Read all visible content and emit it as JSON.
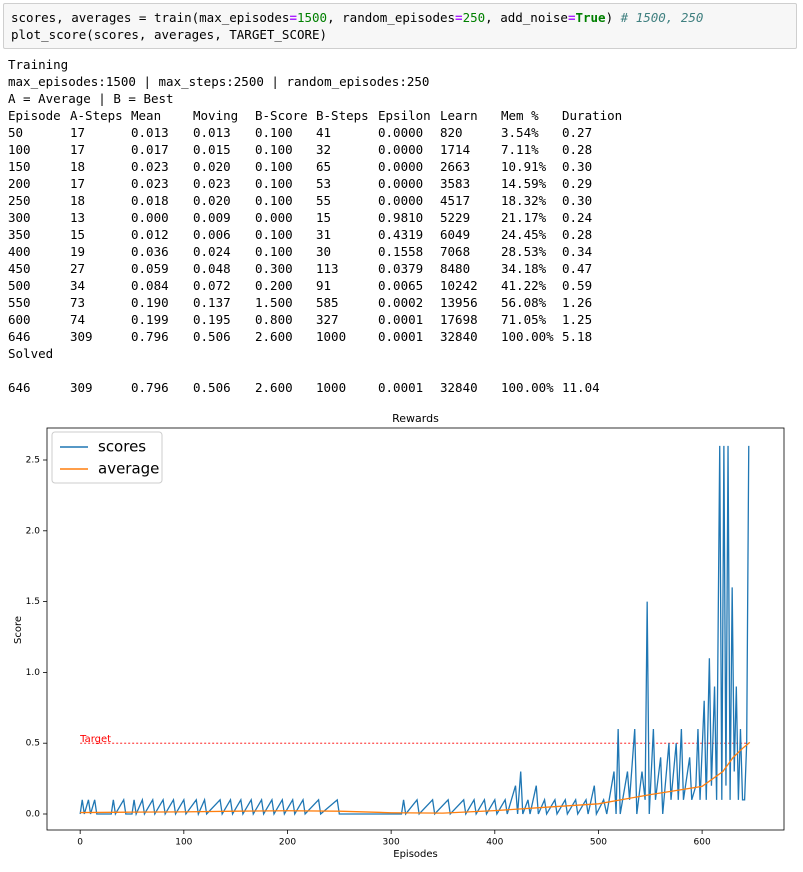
{
  "code": {
    "lines": [
      [
        {
          "text": "scores, averages = train(max_episodes",
          "kind": "plain"
        },
        {
          "text": "=",
          "kind": "op"
        },
        {
          "text": "1500",
          "kind": "num"
        },
        {
          "text": ", random_episodes",
          "kind": "plain"
        },
        {
          "text": "=",
          "kind": "op"
        },
        {
          "text": "250",
          "kind": "num"
        },
        {
          "text": ", add_noise",
          "kind": "plain"
        },
        {
          "text": "=",
          "kind": "op"
        },
        {
          "text": "True",
          "kind": "kw"
        },
        {
          "text": ") ",
          "kind": "plain"
        },
        {
          "text": "# 1500, 250",
          "kind": "comment"
        }
      ],
      [
        {
          "text": "plot_score(scores, averages, TARGET_SCORE)",
          "kind": "plain"
        }
      ]
    ]
  },
  "output": {
    "lines": [
      "Training",
      "max_episodes:1500 | max_steps:2500 | random_episodes:250",
      "A = Average | B = Best"
    ],
    "table": {
      "header": [
        "Episode",
        "A-Steps",
        "Mean",
        "Moving",
        "B-Score",
        "B-Steps",
        "Epsilon",
        "Learn",
        "Mem %",
        "Duration"
      ],
      "rows": [
        [
          "50",
          "17",
          "0.013",
          "0.013",
          "0.100",
          "41",
          "0.0000",
          "820",
          "3.54%",
          "0.27"
        ],
        [
          "100",
          "17",
          "0.017",
          "0.015",
          "0.100",
          "32",
          "0.0000",
          "1714",
          "7.11%",
          "0.28"
        ],
        [
          "150",
          "18",
          "0.023",
          "0.020",
          "0.100",
          "65",
          "0.0000",
          "2663",
          "10.91%",
          "0.30"
        ],
        [
          "200",
          "17",
          "0.023",
          "0.023",
          "0.100",
          "53",
          "0.0000",
          "3583",
          "14.59%",
          "0.29"
        ],
        [
          "250",
          "18",
          "0.018",
          "0.020",
          "0.100",
          "55",
          "0.0000",
          "4517",
          "18.32%",
          "0.30"
        ],
        [
          "300",
          "13",
          "0.000",
          "0.009",
          "0.000",
          "15",
          "0.9810",
          "5229",
          "21.17%",
          "0.24"
        ],
        [
          "350",
          "15",
          "0.012",
          "0.006",
          "0.100",
          "31",
          "0.4319",
          "6049",
          "24.45%",
          "0.28"
        ],
        [
          "400",
          "19",
          "0.036",
          "0.024",
          "0.100",
          "30",
          "0.1558",
          "7068",
          "28.53%",
          "0.34"
        ],
        [
          "450",
          "27",
          "0.059",
          "0.048",
          "0.300",
          "113",
          "0.0379",
          "8480",
          "34.18%",
          "0.47"
        ],
        [
          "500",
          "34",
          "0.084",
          "0.072",
          "0.200",
          "91",
          "0.0065",
          "10242",
          "41.22%",
          "0.59"
        ],
        [
          "550",
          "73",
          "0.190",
          "0.137",
          "1.500",
          "585",
          "0.0002",
          "13956",
          "56.08%",
          "1.26"
        ],
        [
          "600",
          "74",
          "0.199",
          "0.195",
          "0.800",
          "327",
          "0.0001",
          "17698",
          "71.05%",
          "1.25"
        ],
        [
          "646",
          "309",
          "0.796",
          "0.506",
          "2.600",
          "1000",
          "0.0001",
          "32840",
          "100.00%",
          "5.18"
        ]
      ]
    },
    "solved": "Solved",
    "final_row": [
      "646",
      "309",
      "0.796",
      "0.506",
      "2.600",
      "1000",
      "0.0001",
      "32840",
      "100.00%",
      "11.04"
    ]
  },
  "chart_data": {
    "type": "line",
    "title": "Rewards",
    "x_label": "Episodes",
    "y_label": "Score",
    "xlim": [
      -32,
      679
    ],
    "ylim": [
      -0.113,
      2.726
    ],
    "xticks": [
      0,
      100,
      200,
      300,
      400,
      500,
      600
    ],
    "yticks": [
      {
        "value": 0,
        "label": "0.0"
      },
      {
        "value": 0.5,
        "label": "0.5"
      },
      {
        "value": 1,
        "label": "1.0"
      },
      {
        "value": 1.5,
        "label": "1.5"
      },
      {
        "value": 2,
        "label": "2.0"
      },
      {
        "value": 2.5,
        "label": "2.5"
      }
    ],
    "legend": "upper left",
    "target": {
      "value": 0.5,
      "label": "Target",
      "color": "#ff0000"
    },
    "series": [
      {
        "name": "scores",
        "color": "#1f77b4",
        "x": [
          0,
          2,
          4,
          8,
          10,
          14,
          16,
          30,
          32,
          34,
          42,
          44,
          50,
          52,
          54,
          60,
          62,
          70,
          72,
          80,
          82,
          90,
          92,
          100,
          102,
          112,
          114,
          120,
          122,
          135,
          137,
          145,
          147,
          155,
          157,
          165,
          167,
          175,
          177,
          185,
          187,
          195,
          197,
          205,
          207,
          215,
          217,
          230,
          232,
          248,
          250,
          310,
          312,
          314,
          325,
          327,
          340,
          342,
          355,
          357,
          370,
          372,
          380,
          382,
          390,
          392,
          400,
          402,
          410,
          412,
          420,
          422,
          425,
          427,
          432,
          434,
          440,
          442,
          448,
          450,
          458,
          460,
          468,
          470,
          478,
          480,
          488,
          490,
          496,
          498,
          505,
          508,
          515,
          517,
          519,
          521,
          528,
          530,
          535,
          537,
          542,
          545,
          547,
          549,
          553,
          555,
          560,
          562,
          568,
          570,
          575,
          577,
          580,
          582,
          586,
          588,
          590,
          594,
          596,
          598,
          602,
          604,
          607,
          609,
          612,
          614,
          617,
          619,
          621,
          623,
          625,
          627,
          629,
          631,
          633,
          635,
          637,
          639,
          641,
          643,
          645
        ],
        "values": [
          0,
          0.1,
          0,
          0.1,
          0,
          0.1,
          0,
          0,
          0.1,
          0,
          0.1,
          0,
          0,
          0.1,
          0,
          0.1,
          0,
          0.1,
          0,
          0.1,
          0,
          0.1,
          0,
          0.1,
          0,
          0.1,
          0,
          0.1,
          0,
          0.1,
          0,
          0.1,
          0,
          0.1,
          0,
          0.1,
          0,
          0.1,
          0,
          0.1,
          0,
          0.1,
          0,
          0.1,
          0,
          0.1,
          0,
          0.1,
          0,
          0.1,
          0,
          0,
          0.1,
          0,
          0.1,
          0,
          0.1,
          0,
          0.1,
          0,
          0.1,
          0,
          0.1,
          0,
          0.1,
          0,
          0.1,
          0,
          0.1,
          0,
          0.2,
          0,
          0.3,
          0,
          0.1,
          0,
          0.2,
          0,
          0.1,
          0,
          0.1,
          0,
          0.1,
          0,
          0.1,
          0,
          0.1,
          0,
          0.2,
          0,
          0.1,
          0,
          0.3,
          0,
          0.6,
          0,
          0.3,
          0.1,
          0.6,
          0,
          0.3,
          0.1,
          1.5,
          0,
          0.6,
          0.1,
          0.4,
          0,
          0.5,
          0.1,
          0.5,
          0.1,
          0.6,
          0.1,
          0.3,
          0.4,
          0.1,
          0.2,
          0.6,
          0.1,
          0.8,
          0.1,
          1.1,
          0.2,
          0.9,
          0.1,
          2.6,
          0.1,
          2.6,
          0.2,
          2.6,
          0.1,
          1.6,
          0.3,
          0.9,
          0.1,
          0.6,
          0.1,
          0.1,
          0.5,
          2.6
        ]
      },
      {
        "name": "average",
        "color": "#ff7f0e",
        "x": [
          0,
          50,
          100,
          150,
          200,
          250,
          300,
          350,
          400,
          450,
          500,
          550,
          600,
          620,
          630,
          640,
          646
        ],
        "values": [
          0.01,
          0.013,
          0.015,
          0.02,
          0.023,
          0.02,
          0.009,
          0.006,
          0.024,
          0.048,
          0.072,
          0.137,
          0.195,
          0.3,
          0.4,
          0.47,
          0.506
        ]
      }
    ]
  }
}
